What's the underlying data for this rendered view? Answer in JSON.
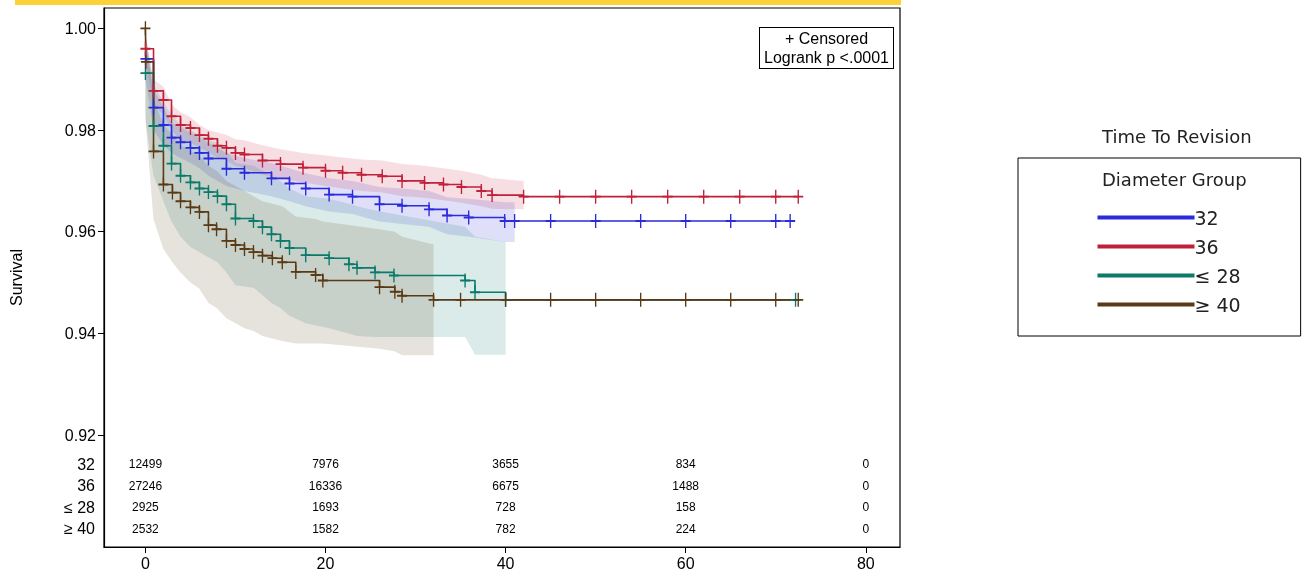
{
  "chart_data": {
    "type": "step",
    "title": "Time To Revision",
    "legend_title": "Diameter Group",
    "ylabel": "Survival",
    "annotations": [
      "+ Censored",
      "Logrank p <.0001",
      "12499",
      "7976",
      "3655",
      "834",
      "0",
      "27246",
      "16336",
      "6675",
      "1488",
      "0",
      "2925",
      "1693",
      "728",
      "158",
      "0",
      "2532",
      "1582",
      "782",
      "224",
      "0"
    ],
    "xlim": [
      -4.6,
      83.8
    ],
    "xticks": [
      0,
      20,
      40,
      60,
      80
    ],
    "ylim": [
      0.898,
      1.004
    ],
    "yticks": [
      0.92,
      0.94,
      0.96,
      0.98,
      {
        "value": 1.0,
        "label": "1.00"
      }
    ],
    "grid": false,
    "legend": "right",
    "marker": "cross",
    "series": [
      {
        "name": "32",
        "color": "#2b2bdc",
        "x": [
          0,
          0.9,
          2,
          2.9,
          3.9,
          5,
          6,
          7,
          9,
          11,
          14,
          16,
          17.8,
          20.4,
          23,
          26,
          28.5,
          31.5,
          33.5,
          35.9,
          39.9,
          41,
          45,
          50,
          55,
          60,
          65,
          70,
          71.6
        ],
        "values": [
          0.994,
          0.9844,
          0.981,
          0.9785,
          0.9776,
          0.9765,
          0.9755,
          0.9744,
          0.9724,
          0.9716,
          0.9705,
          0.9695,
          0.9685,
          0.9673,
          0.9669,
          0.9654,
          0.9651,
          0.9644,
          0.9632,
          0.9628,
          0.9621,
          0.9621,
          0.9621,
          0.9621,
          0.9621,
          0.9621,
          0.9621,
          0.9621,
          0.9621
        ],
        "upper": [
          0.9975,
          0.988,
          0.9845,
          0.9815,
          0.9805,
          0.9795,
          0.9785,
          0.9775,
          0.9755,
          0.9745,
          0.9735,
          0.9725,
          0.9715,
          0.9705,
          0.97,
          0.9688,
          0.9685,
          0.968,
          0.9668,
          0.9665,
          0.9658,
          0.9658,
          null,
          null,
          null,
          null,
          null,
          null,
          null
        ],
        "lower": [
          0.99,
          0.98,
          0.977,
          0.9755,
          0.9745,
          0.9735,
          0.9725,
          0.971,
          0.969,
          0.968,
          0.967,
          0.966,
          0.965,
          0.964,
          0.9635,
          0.962,
          0.9615,
          0.961,
          0.9595,
          0.959,
          0.958,
          0.958,
          null,
          null,
          null,
          null,
          null,
          null,
          null
        ]
      },
      {
        "name": "36",
        "color": "#c0203a",
        "x": [
          0,
          0.9,
          2,
          2.9,
          3.9,
          5,
          6,
          7,
          8,
          9,
          10,
          11,
          13,
          15,
          17.5,
          20,
          21.9,
          24,
          26.3,
          28.5,
          31,
          33.1,
          35.1,
          37.3,
          38.5,
          42,
          46,
          50,
          54,
          58,
          62,
          66,
          70,
          72.5
        ],
        "values": [
          0.996,
          0.9877,
          0.9859,
          0.9827,
          0.981,
          0.9804,
          0.979,
          0.9783,
          0.9769,
          0.9765,
          0.9755,
          0.9752,
          0.974,
          0.9733,
          0.9726,
          0.972,
          0.9716,
          0.9712,
          0.9709,
          0.97,
          0.9696,
          0.9693,
          0.9688,
          0.968,
          0.9672,
          0.9669,
          0.9669,
          0.9669,
          0.9669,
          0.9669,
          0.9669,
          0.9669,
          0.9669,
          0.9669
        ],
        "upper": [
          0.9986,
          0.99,
          0.9885,
          0.985,
          0.9835,
          0.9825,
          0.981,
          0.98,
          0.9795,
          0.979,
          0.9782,
          0.978,
          0.977,
          0.9762,
          0.9755,
          0.975,
          0.9746,
          0.9742,
          0.974,
          0.9733,
          0.973,
          0.9725,
          0.972,
          0.9712,
          0.9705,
          0.97,
          null,
          null,
          null,
          null,
          null,
          null,
          null,
          null
        ],
        "lower": [
          0.994,
          0.985,
          0.983,
          0.98,
          0.978,
          0.9775,
          0.9765,
          0.9757,
          0.9745,
          0.974,
          0.973,
          0.9725,
          0.9712,
          0.9705,
          0.9697,
          0.969,
          0.9685,
          0.968,
          0.9677,
          0.967,
          0.9667,
          0.9662,
          0.9657,
          0.965,
          0.9645,
          0.9644,
          null,
          null,
          null,
          null,
          null,
          null,
          null,
          null
        ]
      },
      {
        "name": "≤ 28",
        "color": "#0b7a6a",
        "x": [
          0,
          0.9,
          2,
          2.9,
          3.9,
          5,
          6,
          7,
          8,
          9,
          10,
          12,
          13,
          14,
          15,
          16,
          17.8,
          20.4,
          22.6,
          23.5,
          25.5,
          27.6,
          35.5,
          36.6,
          40,
          72.2
        ],
        "values": [
          0.9912,
          0.9808,
          0.9769,
          0.9734,
          0.971,
          0.9697,
          0.9685,
          0.9678,
          0.967,
          0.9654,
          0.9626,
          0.9621,
          0.9609,
          0.9595,
          0.9582,
          0.9568,
          0.9554,
          0.9548,
          0.9536,
          0.9529,
          0.952,
          0.9514,
          0.9504,
          0.9481,
          0.9466,
          0.9466
        ],
        "upper": [
          0.999,
          0.989,
          0.9855,
          0.983,
          0.981,
          0.98,
          0.979,
          0.978,
          0.9775,
          0.976,
          0.9735,
          0.973,
          0.972,
          0.971,
          0.97,
          0.9685,
          0.967,
          0.9665,
          0.9655,
          0.965,
          0.9642,
          0.9635,
          0.961,
          0.959,
          0.958,
          null
        ],
        "lower": [
          0.982,
          0.971,
          0.966,
          0.962,
          0.959,
          0.957,
          0.956,
          0.955,
          0.954,
          0.952,
          0.9495,
          0.949,
          0.9475,
          0.946,
          0.945,
          0.9435,
          0.942,
          0.941,
          0.94,
          0.9395,
          0.9393,
          0.9393,
          0.9393,
          0.9358,
          0.9358,
          null
        ]
      },
      {
        "name": "≥ 40",
        "color": "#5a3a14",
        "x": [
          0,
          0.05,
          0.9,
          2,
          3,
          3.9,
          5,
          6,
          7,
          7.9,
          9,
          10,
          11,
          12,
          13,
          14.1,
          15.2,
          16.7,
          18.9,
          19.7,
          26,
          27.7,
          28.5,
          32,
          35,
          40,
          45,
          50,
          55,
          60,
          65,
          70,
          72.5
        ],
        "values": [
          1.0,
          0.9934,
          0.9758,
          0.9693,
          0.9677,
          0.966,
          0.9648,
          0.9639,
          0.9613,
          0.9605,
          0.9582,
          0.9574,
          0.9566,
          0.956,
          0.9553,
          0.9548,
          0.954,
          0.9521,
          0.9515,
          0.9504,
          0.9491,
          0.9482,
          0.9474,
          0.9466,
          0.9466,
          0.9466,
          0.9466,
          0.9466,
          0.9466,
          0.9466,
          0.9466,
          0.9466,
          0.9466
        ],
        "upper": [
          0.9995,
          0.999,
          0.986,
          0.981,
          0.979,
          0.977,
          0.976,
          0.975,
          0.973,
          0.972,
          0.97,
          0.969,
          0.968,
          0.967,
          0.966,
          0.9655,
          0.965,
          0.963,
          0.9625,
          0.962,
          0.9605,
          0.96,
          0.959,
          0.9575,
          null,
          null,
          null,
          null,
          null,
          null,
          null,
          null,
          null
        ],
        "lower": [
          0.985,
          0.981,
          0.9624,
          0.9566,
          0.954,
          0.952,
          0.95,
          0.9488,
          0.946,
          0.945,
          0.943,
          0.942,
          0.941,
          0.9405,
          0.9395,
          0.939,
          0.9385,
          0.938,
          0.938,
          0.938,
          0.937,
          0.9365,
          0.9357,
          0.9357,
          null,
          null,
          null,
          null,
          null,
          null,
          null,
          null,
          null
        ]
      }
    ]
  }
}
